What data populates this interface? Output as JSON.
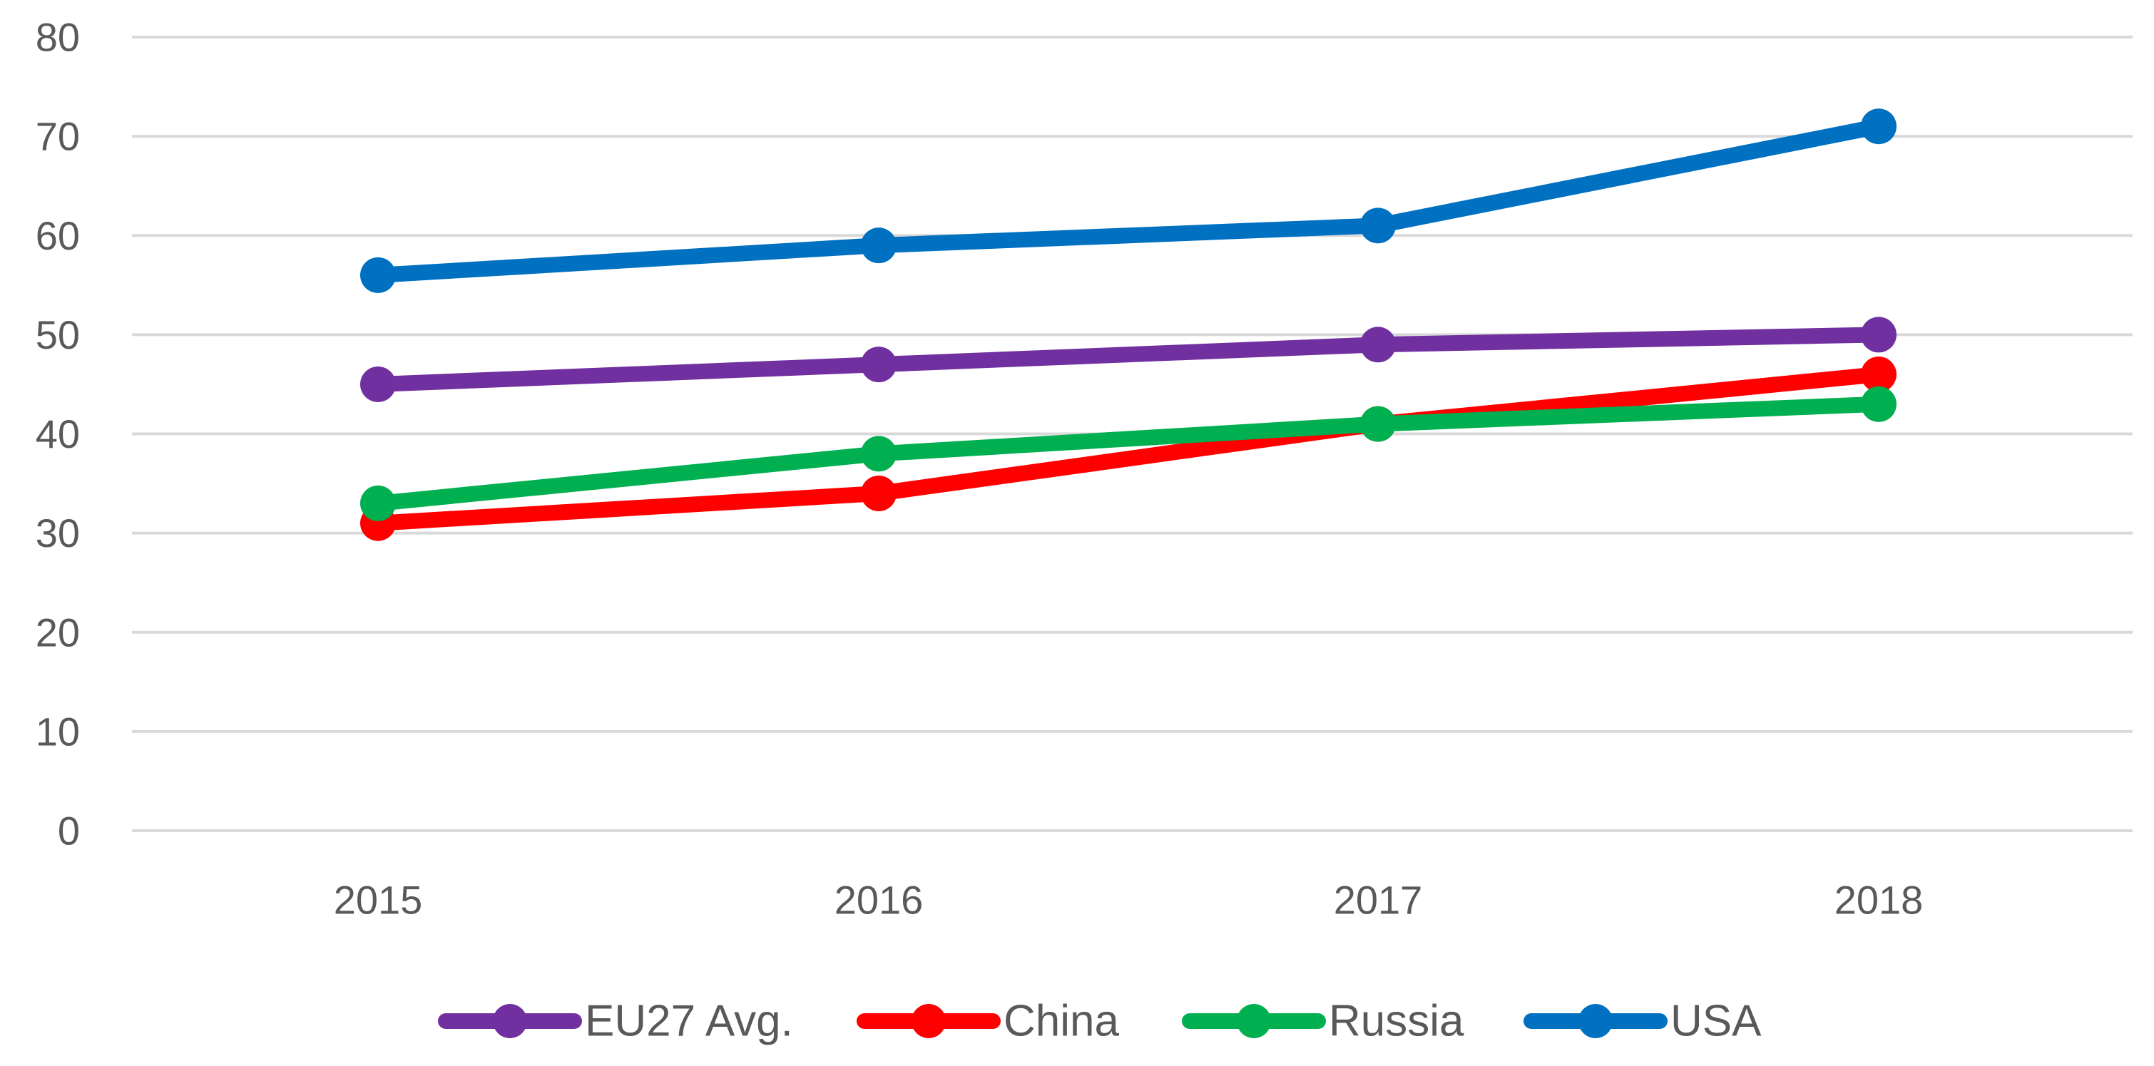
{
  "chart_data": {
    "type": "line",
    "title": "",
    "xlabel": "",
    "ylabel": "",
    "categories": [
      "2015",
      "2016",
      "2017",
      "2018"
    ],
    "ylim": [
      0,
      80
    ],
    "yticks": [
      0,
      10,
      20,
      30,
      40,
      50,
      60,
      70,
      80
    ],
    "grid": true,
    "legend_position": "bottom",
    "series": [
      {
        "name": "EU27 Avg.",
        "color": "#7030a0",
        "values": [
          45,
          47,
          49,
          50
        ]
      },
      {
        "name": "China",
        "color": "#ff0000",
        "values": [
          31,
          34,
          41,
          46
        ]
      },
      {
        "name": "Russia",
        "color": "#00b050",
        "values": [
          33,
          38,
          41,
          43
        ]
      },
      {
        "name": "USA",
        "color": "#0070c0",
        "values": [
          56,
          59,
          61,
          71
        ]
      }
    ]
  }
}
